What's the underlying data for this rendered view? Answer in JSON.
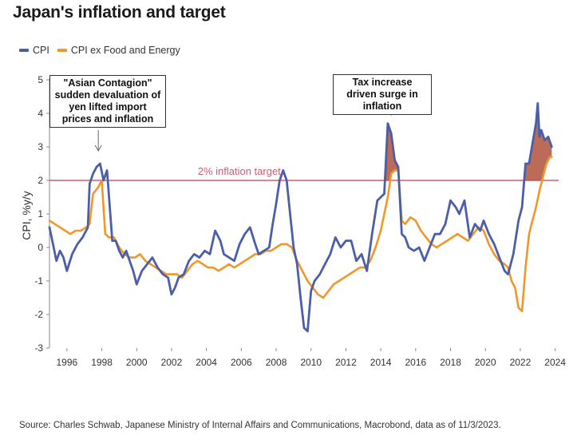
{
  "title": "Japan's inflation and target",
  "legend": [
    {
      "label": "CPI",
      "color": "#4a5fa8"
    },
    {
      "label": "CPI ex Food and Energy",
      "color": "#f0962a"
    }
  ],
  "source": "Source: Charles Schwab, Japanese Ministry of Internal Affairs and Communications, Macrobond, data as of 11/3/2023.",
  "annotations": {
    "asian": "\"Asian Contagion\" sudden devaluation of yen lifted import prices and inflation",
    "tax": "Tax increase driven surge in inflation",
    "target": "2% inflation target"
  },
  "chart_data": {
    "type": "line",
    "ylabel": "CPI, %y/y",
    "ylim": [
      -3,
      5
    ],
    "yticks": [
      "-3",
      "-2",
      "-1",
      "0",
      "1",
      "2",
      "3",
      "4",
      "5"
    ],
    "xlim": [
      1995,
      2024.2
    ],
    "xticks": [
      "1996",
      "1998",
      "2000",
      "2002",
      "2004",
      "2006",
      "2008",
      "2010",
      "2012",
      "2014",
      "2016",
      "2018",
      "2020",
      "2022",
      "2024"
    ],
    "target_line": 2,
    "series": [
      {
        "name": "CPI",
        "color": "#4a5fa8",
        "x": [
          1995.0,
          1995.2,
          1995.4,
          1995.6,
          1995.8,
          1996.0,
          1996.3,
          1996.6,
          1996.9,
          1997.2,
          1997.3,
          1997.5,
          1997.7,
          1997.9,
          1998.1,
          1998.3,
          1998.6,
          1998.8,
          1999.0,
          1999.2,
          1999.4,
          1999.6,
          1999.8,
          2000.0,
          2000.3,
          2000.6,
          2000.9,
          2001.2,
          2001.5,
          2001.8,
          2002.0,
          2002.2,
          2002.4,
          2002.7,
          2003.0,
          2003.3,
          2003.6,
          2003.9,
          2004.2,
          2004.5,
          2004.8,
          2005.0,
          2005.3,
          2005.6,
          2005.9,
          2006.2,
          2006.5,
          2006.8,
          2007.0,
          2007.3,
          2007.6,
          2007.8,
          2008.0,
          2008.2,
          2008.4,
          2008.6,
          2008.8,
          2009.0,
          2009.2,
          2009.4,
          2009.6,
          2009.8,
          2010.0,
          2010.2,
          2010.5,
          2010.8,
          2011.1,
          2011.4,
          2011.7,
          2012.0,
          2012.3,
          2012.6,
          2012.9,
          2013.2,
          2013.5,
          2013.8,
          2014.0,
          2014.2,
          2014.4,
          2014.6,
          2014.8,
          2015.0,
          2015.2,
          2015.4,
          2015.6,
          2015.9,
          2016.2,
          2016.5,
          2016.8,
          2017.1,
          2017.4,
          2017.7,
          2018.0,
          2018.3,
          2018.5,
          2018.8,
          2019.1,
          2019.4,
          2019.7,
          2019.9,
          2020.2,
          2020.5,
          2020.8,
          2021.1,
          2021.3,
          2021.6,
          2021.9,
          2022.1,
          2022.3,
          2022.5,
          2022.7,
          2022.9,
          2023.0,
          2023.1,
          2023.2,
          2023.4,
          2023.6,
          2023.8
        ],
        "values": [
          0.6,
          0.1,
          -0.4,
          -0.1,
          -0.3,
          -0.7,
          -0.2,
          0.1,
          0.3,
          0.6,
          1.9,
          2.2,
          2.4,
          2.5,
          2.0,
          2.3,
          0.2,
          0.2,
          -0.1,
          -0.3,
          -0.1,
          -0.4,
          -0.7,
          -1.1,
          -0.7,
          -0.5,
          -0.3,
          -0.6,
          -0.8,
          -0.9,
          -1.4,
          -1.2,
          -0.9,
          -0.8,
          -0.4,
          -0.2,
          -0.3,
          -0.1,
          -0.2,
          0.5,
          0.2,
          -0.2,
          -0.3,
          -0.4,
          0.1,
          0.4,
          0.6,
          0.1,
          -0.2,
          -0.1,
          0.0,
          0.7,
          1.3,
          2.0,
          2.3,
          2.0,
          1.0,
          0.0,
          -0.5,
          -1.5,
          -2.4,
          -2.5,
          -1.3,
          -1.0,
          -0.8,
          -0.5,
          -0.2,
          0.3,
          0.0,
          0.2,
          0.2,
          -0.4,
          -0.2,
          -0.7,
          0.4,
          1.4,
          1.5,
          1.6,
          3.7,
          3.4,
          2.6,
          2.4,
          0.4,
          0.3,
          0.0,
          -0.1,
          0.0,
          -0.4,
          0.0,
          0.4,
          0.4,
          0.7,
          1.4,
          1.2,
          1.0,
          1.4,
          0.3,
          0.7,
          0.5,
          0.8,
          0.4,
          0.1,
          -0.3,
          -0.7,
          -0.8,
          -0.2,
          0.8,
          1.2,
          2.5,
          2.5,
          3.1,
          3.7,
          4.3,
          3.3,
          3.5,
          3.2,
          3.3,
          3.0
        ]
      },
      {
        "name": "CPI ex Food and Energy",
        "color": "#f0962a",
        "x": [
          1995.0,
          1995.3,
          1995.6,
          1995.9,
          1996.2,
          1996.5,
          1996.8,
          1997.1,
          1997.3,
          1997.5,
          1997.8,
          1998.0,
          1998.2,
          1998.4,
          1998.7,
          1999.0,
          1999.3,
          1999.6,
          1999.9,
          2000.2,
          2000.5,
          2000.8,
          2001.1,
          2001.4,
          2001.7,
          2002.0,
          2002.3,
          2002.6,
          2002.9,
          2003.2,
          2003.5,
          2003.8,
          2004.1,
          2004.4,
          2004.7,
          2005.0,
          2005.3,
          2005.6,
          2005.9,
          2006.2,
          2006.5,
          2006.8,
          2007.1,
          2007.4,
          2007.7,
          2008.0,
          2008.3,
          2008.6,
          2008.9,
          2009.2,
          2009.5,
          2009.8,
          2010.1,
          2010.4,
          2010.7,
          2011.0,
          2011.3,
          2011.6,
          2011.9,
          2012.2,
          2012.5,
          2012.8,
          2013.1,
          2013.4,
          2013.7,
          2014.0,
          2014.2,
          2014.4,
          2014.6,
          2014.8,
          2015.0,
          2015.2,
          2015.4,
          2015.7,
          2016.0,
          2016.3,
          2016.6,
          2016.9,
          2017.2,
          2017.5,
          2017.8,
          2018.1,
          2018.4,
          2018.7,
          2019.0,
          2019.3,
          2019.6,
          2019.9,
          2020.2,
          2020.5,
          2020.8,
          2021.1,
          2021.3,
          2021.5,
          2021.7,
          2021.9,
          2022.1,
          2022.3,
          2022.5,
          2022.7,
          2022.9,
          2023.1,
          2023.3,
          2023.5,
          2023.7,
          2023.8
        ],
        "values": [
          0.8,
          0.7,
          0.6,
          0.5,
          0.4,
          0.5,
          0.5,
          0.6,
          0.7,
          1.6,
          1.8,
          2.0,
          0.4,
          0.3,
          0.3,
          0.0,
          -0.2,
          -0.3,
          -0.3,
          -0.2,
          -0.4,
          -0.5,
          -0.6,
          -0.7,
          -0.8,
          -0.8,
          -0.8,
          -0.9,
          -0.7,
          -0.5,
          -0.4,
          -0.5,
          -0.6,
          -0.6,
          -0.7,
          -0.6,
          -0.5,
          -0.6,
          -0.5,
          -0.4,
          -0.3,
          -0.2,
          -0.2,
          -0.1,
          -0.1,
          0.0,
          0.1,
          0.1,
          0.0,
          -0.4,
          -0.7,
          -1.0,
          -1.2,
          -1.4,
          -1.5,
          -1.3,
          -1.1,
          -1.0,
          -0.9,
          -0.8,
          -0.7,
          -0.6,
          -0.6,
          -0.4,
          0.0,
          0.5,
          1.0,
          1.5,
          2.2,
          2.3,
          2.3,
          0.8,
          0.7,
          0.9,
          0.8,
          0.5,
          0.3,
          0.1,
          0.0,
          0.1,
          0.2,
          0.3,
          0.4,
          0.3,
          0.2,
          0.4,
          0.6,
          0.5,
          0.1,
          -0.2,
          -0.4,
          -0.5,
          -0.6,
          -1.0,
          -1.2,
          -1.8,
          -1.9,
          -0.6,
          0.4,
          0.8,
          1.2,
          1.7,
          2.1,
          2.5,
          2.7,
          2.7
        ]
      }
    ]
  }
}
